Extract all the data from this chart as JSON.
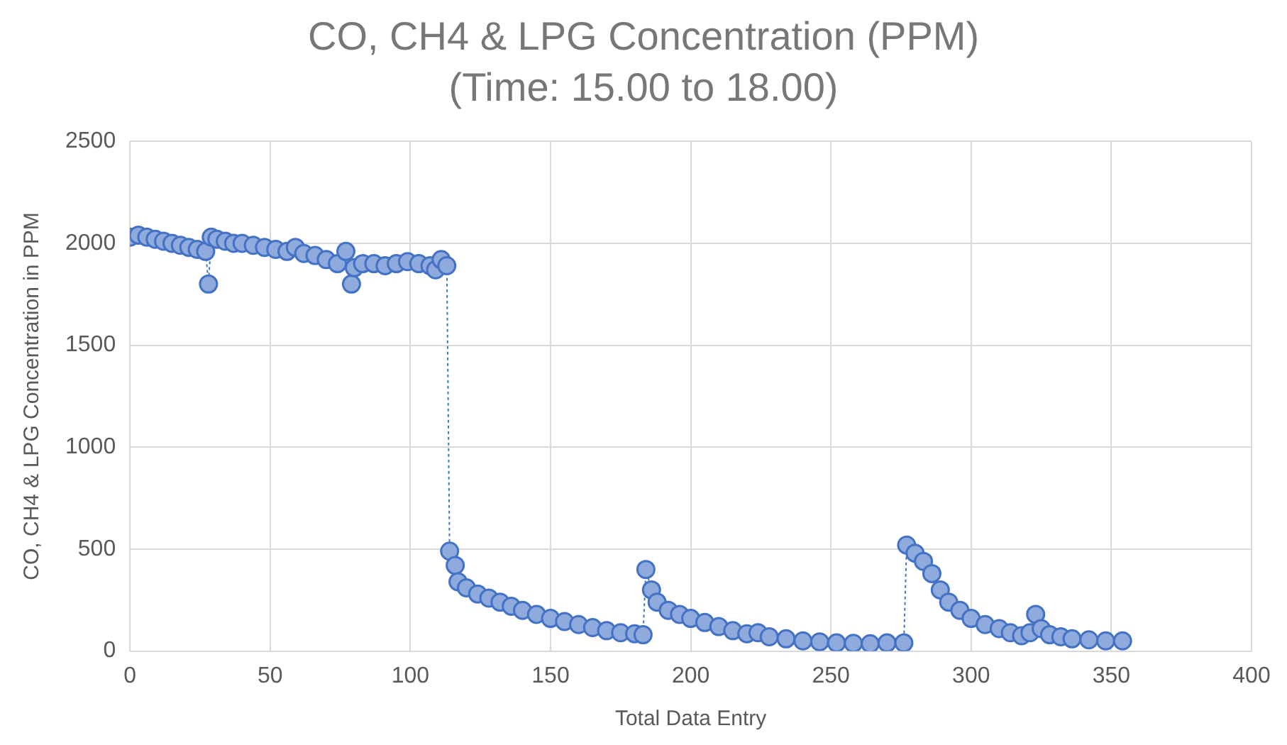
{
  "chart_data": {
    "type": "line",
    "title": "CO, CH4 & LPG Concentration (PPM) (Time: 15.00 to 18.00)",
    "xlabel": "Total Data Entry",
    "ylabel": "CO, CH4 & LPG Concentration in PPM",
    "xlim": [
      0,
      400
    ],
    "xticks": [
      0,
      50,
      100,
      150,
      200,
      250,
      300,
      350,
      400
    ],
    "ylim": [
      0,
      2500
    ],
    "yticks": [
      0,
      500,
      1000,
      1500,
      2000,
      2500
    ],
    "grid": true,
    "marker": "circle",
    "line_style": "dotted",
    "series": [
      {
        "color": "#4472c4",
        "x": [
          0,
          3,
          6,
          9,
          12,
          15,
          18,
          21,
          24,
          27,
          28,
          29,
          31,
          34,
          37,
          40,
          44,
          48,
          52,
          56,
          59,
          62,
          66,
          70,
          74,
          77,
          79,
          80,
          83,
          87,
          91,
          95,
          99,
          103,
          107,
          109,
          111,
          113,
          114,
          116,
          117,
          120,
          124,
          128,
          132,
          136,
          140,
          145,
          150,
          155,
          160,
          165,
          170,
          175,
          180,
          183,
          184,
          186,
          188,
          192,
          196,
          200,
          205,
          210,
          215,
          220,
          224,
          228,
          234,
          240,
          246,
          252,
          258,
          264,
          270,
          276,
          277,
          280,
          283,
          286,
          289,
          292,
          296,
          300,
          305,
          310,
          314,
          318,
          321,
          323,
          325,
          328,
          332,
          336,
          342,
          348,
          354
        ],
        "values": [
          2030,
          2040,
          2030,
          2020,
          2010,
          2000,
          1990,
          1980,
          1970,
          1960,
          1800,
          2030,
          2020,
          2010,
          2000,
          2000,
          1990,
          1980,
          1970,
          1960,
          1980,
          1950,
          1940,
          1920,
          1900,
          1960,
          1800,
          1880,
          1900,
          1900,
          1890,
          1900,
          1910,
          1900,
          1890,
          1870,
          1920,
          1890,
          490,
          420,
          340,
          310,
          280,
          260,
          240,
          220,
          200,
          180,
          160,
          145,
          130,
          115,
          100,
          90,
          85,
          80,
          400,
          300,
          240,
          200,
          180,
          160,
          140,
          120,
          100,
          85,
          90,
          70,
          60,
          50,
          45,
          40,
          38,
          36,
          40,
          40,
          520,
          480,
          440,
          380,
          300,
          240,
          200,
          160,
          130,
          110,
          90,
          75,
          90,
          180,
          110,
          80,
          70,
          60,
          55,
          50,
          50
        ]
      }
    ]
  }
}
